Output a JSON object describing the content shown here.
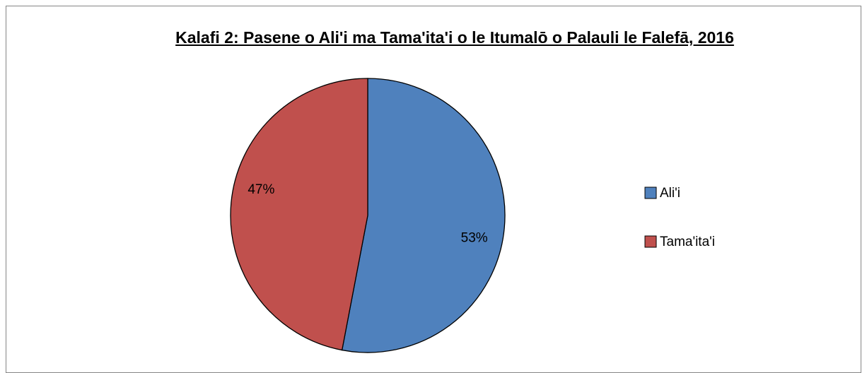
{
  "chart_data": {
    "type": "pie",
    "title": "Kalafi 2: Pasene o Ali'i ma Tama'ita'i o le Itumalō o Palauli le Falefā, 2016",
    "categories": [
      "Ali'i",
      "Tama'ita'i"
    ],
    "values": [
      53,
      47
    ],
    "value_labels": [
      "53%",
      "47%"
    ],
    "colors": [
      "#4f81bd",
      "#c0504d"
    ],
    "legend": "right"
  }
}
